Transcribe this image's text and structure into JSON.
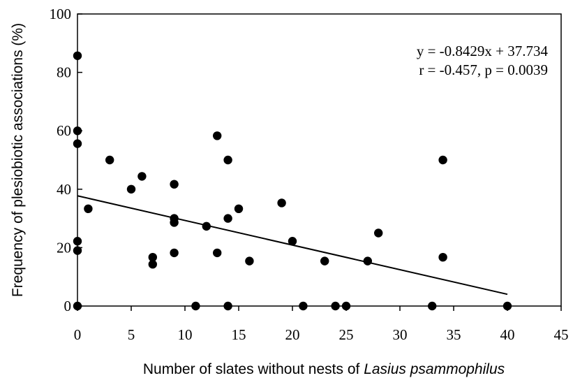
{
  "chart_data": {
    "type": "scatter",
    "xlabel": "Number of slates without nests of ",
    "xlabel_italic": "Lasius psammophilus",
    "ylabel": "Frequency of plesiobiotic associations (%)",
    "xlim": [
      0,
      45
    ],
    "ylim": [
      0,
      100
    ],
    "xticks": [
      0,
      5,
      10,
      15,
      20,
      25,
      30,
      35,
      40,
      45
    ],
    "yticks": [
      0,
      20,
      40,
      60,
      80,
      100
    ],
    "xtick_labels": [
      "0",
      "5",
      "10",
      "15",
      "20",
      "25",
      "30",
      "35",
      "40",
      "45"
    ],
    "ytick_labels": [
      "0",
      "20",
      "40",
      "60",
      "80",
      "100"
    ],
    "grid": false,
    "point_color": "#000000",
    "points": [
      {
        "x": 0,
        "y": 85.7
      },
      {
        "x": 0,
        "y": 60
      },
      {
        "x": 0,
        "y": 55.6
      },
      {
        "x": 0,
        "y": 22.2
      },
      {
        "x": 0,
        "y": 19
      },
      {
        "x": 0,
        "y": 0
      },
      {
        "x": 1,
        "y": 33.3
      },
      {
        "x": 3,
        "y": 50
      },
      {
        "x": 5,
        "y": 40
      },
      {
        "x": 6,
        "y": 44.4
      },
      {
        "x": 7,
        "y": 16.7
      },
      {
        "x": 7,
        "y": 14.3
      },
      {
        "x": 9,
        "y": 41.7
      },
      {
        "x": 9,
        "y": 30
      },
      {
        "x": 9,
        "y": 28.6
      },
      {
        "x": 9,
        "y": 18.2
      },
      {
        "x": 11,
        "y": 0
      },
      {
        "x": 12,
        "y": 27.3
      },
      {
        "x": 13,
        "y": 58.3
      },
      {
        "x": 13,
        "y": 18.2
      },
      {
        "x": 14,
        "y": 50
      },
      {
        "x": 14,
        "y": 30
      },
      {
        "x": 14,
        "y": 0
      },
      {
        "x": 15,
        "y": 33.3
      },
      {
        "x": 16,
        "y": 15.4
      },
      {
        "x": 19,
        "y": 35.3
      },
      {
        "x": 20,
        "y": 22.2
      },
      {
        "x": 21,
        "y": 0
      },
      {
        "x": 23,
        "y": 15.4
      },
      {
        "x": 24,
        "y": 0
      },
      {
        "x": 25,
        "y": 0
      },
      {
        "x": 27,
        "y": 15.4
      },
      {
        "x": 28,
        "y": 25
      },
      {
        "x": 33,
        "y": 0
      },
      {
        "x": 34,
        "y": 50
      },
      {
        "x": 34,
        "y": 16.7
      },
      {
        "x": 40,
        "y": 0
      }
    ],
    "trendline": {
      "slope": -0.8429,
      "intercept": 37.734,
      "x_range": [
        0,
        40
      ]
    },
    "annotations": [
      "y = -0.8429x + 37.734",
      "r = -0.457, p = 0.0039"
    ]
  }
}
